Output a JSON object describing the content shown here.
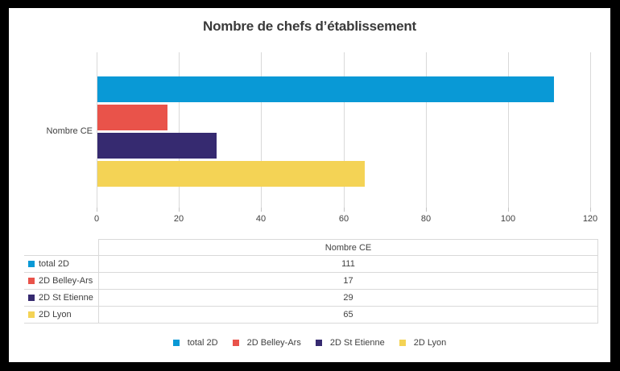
{
  "title": "Nombre de chefs d’établissement",
  "colors": {
    "frame": "#000000",
    "background": "#ffffff",
    "gridline": "#d9d9d9",
    "text": "#404040",
    "title_text": "#3a3a3a"
  },
  "chart_data": {
    "type": "bar",
    "orientation": "horizontal",
    "title": "Nombre de chefs d’établissement",
    "categories": [
      "Nombre CE"
    ],
    "series": [
      {
        "name": "total 2D",
        "values": [
          111
        ],
        "color": "#0999d6"
      },
      {
        "name": "2D Belley-Ars",
        "values": [
          17
        ],
        "color": "#e9534a"
      },
      {
        "name": "2D St Etienne",
        "values": [
          29
        ],
        "color": "#362a70"
      },
      {
        "name": "2D Lyon",
        "values": [
          65
        ],
        "color": "#f4d355"
      }
    ],
    "xlim": [
      0,
      120
    ],
    "xticks": [
      0,
      20,
      40,
      60,
      80,
      100,
      120
    ],
    "grid": true,
    "legend_position": "bottom",
    "data_table": {
      "header": "Nombre CE",
      "rows": [
        {
          "label": "total 2D",
          "value": "111"
        },
        {
          "label": "2D Belley-Ars",
          "value": "17"
        },
        {
          "label": "2D St Etienne",
          "value": "29"
        },
        {
          "label": "2D Lyon",
          "value": "65"
        }
      ]
    }
  }
}
